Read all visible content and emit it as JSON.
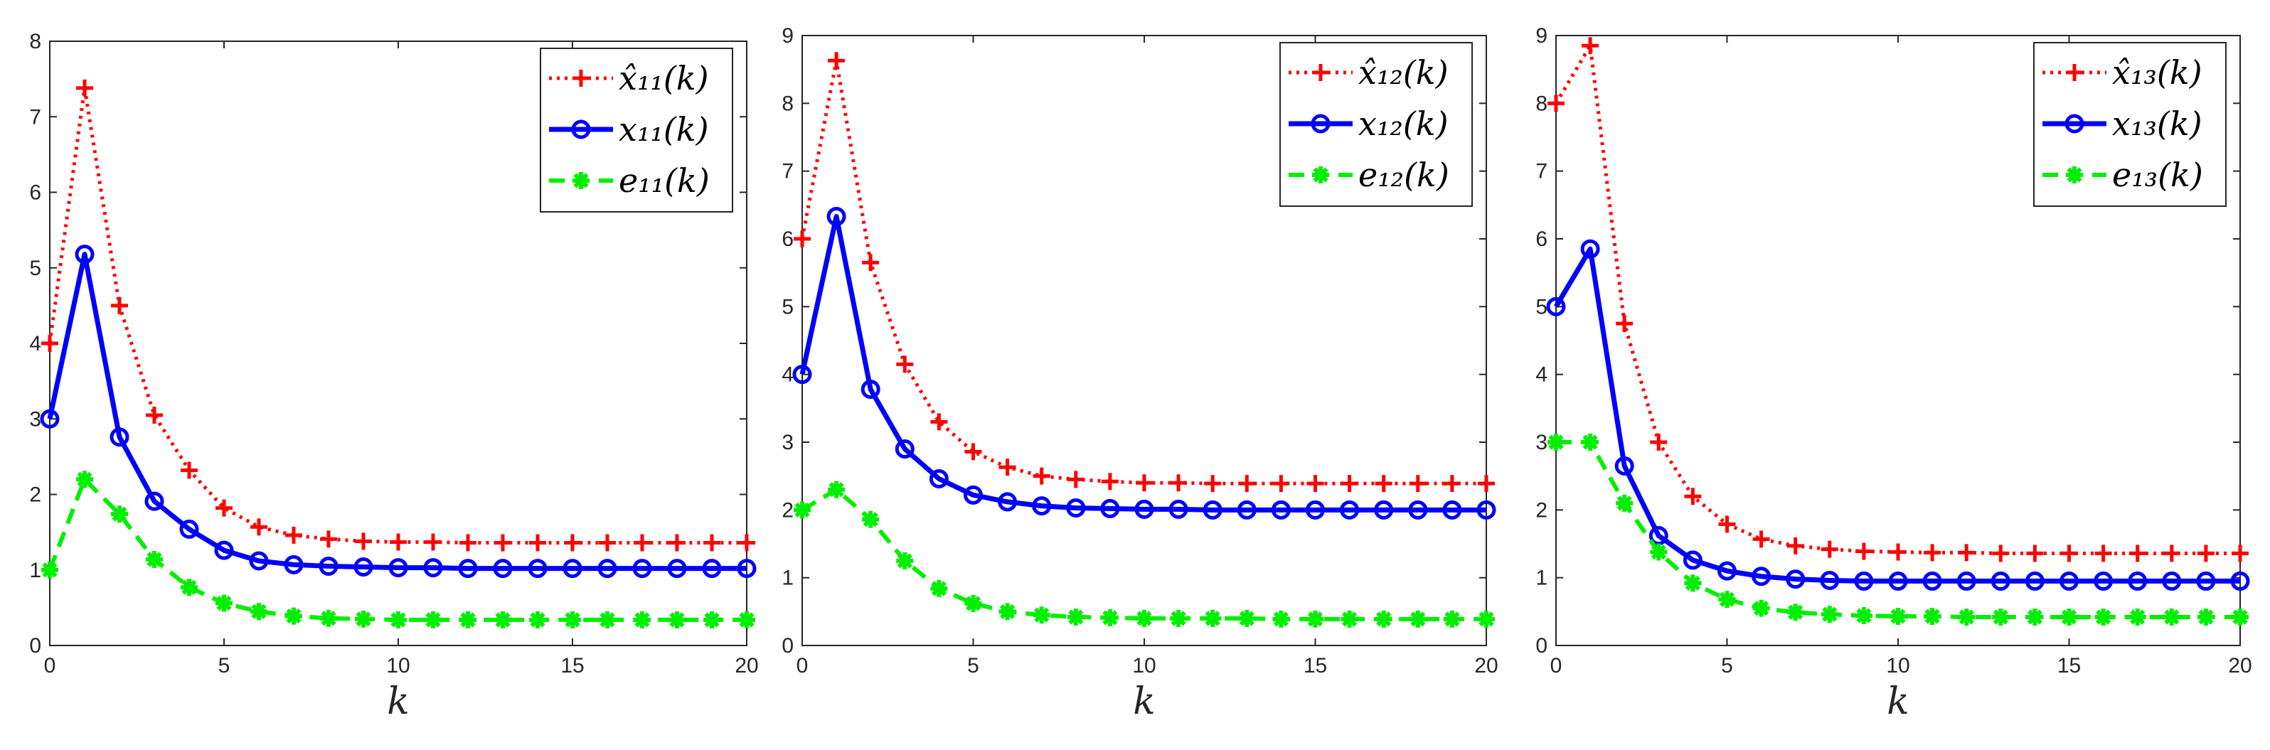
{
  "chart_data": [
    {
      "type": "line",
      "xlabel": "k",
      "xlim": [
        0,
        20
      ],
      "ylim": [
        0,
        8
      ],
      "xticks": [
        "0",
        "5",
        "10",
        "15",
        "20"
      ],
      "yticks": [
        "0",
        "1",
        "2",
        "3",
        "4",
        "5",
        "6",
        "7",
        "8"
      ],
      "grid": false,
      "legend_position": "top-right",
      "x": [
        0,
        1,
        2,
        3,
        4,
        5,
        6,
        7,
        8,
        9,
        10,
        11,
        12,
        13,
        14,
        15,
        16,
        17,
        18,
        19,
        20
      ],
      "series": [
        {
          "name": "x̂₁₁(k)",
          "color": "#ff0000",
          "style": "dotted",
          "marker": "plus",
          "values": [
            4.0,
            7.38,
            4.5,
            3.05,
            2.32,
            1.82,
            1.57,
            1.46,
            1.41,
            1.38,
            1.37,
            1.37,
            1.36,
            1.36,
            1.36,
            1.36,
            1.36,
            1.36,
            1.36,
            1.36,
            1.36
          ]
        },
        {
          "name": "x₁₁(k)",
          "color": "#0000ff",
          "style": "solid",
          "marker": "circle",
          "values": [
            3.0,
            5.18,
            2.76,
            1.91,
            1.54,
            1.26,
            1.12,
            1.07,
            1.05,
            1.04,
            1.03,
            1.03,
            1.02,
            1.02,
            1.02,
            1.02,
            1.02,
            1.02,
            1.02,
            1.02,
            1.02
          ]
        },
        {
          "name": "e₁₁(k)",
          "color": "#00ee00",
          "style": "dashed",
          "marker": "star",
          "values": [
            1.0,
            2.2,
            1.74,
            1.14,
            0.77,
            0.56,
            0.45,
            0.39,
            0.36,
            0.35,
            0.34,
            0.34,
            0.34,
            0.34,
            0.34,
            0.34,
            0.34,
            0.34,
            0.34,
            0.34,
            0.34
          ]
        }
      ]
    },
    {
      "type": "line",
      "xlabel": "k",
      "xlim": [
        0,
        20
      ],
      "ylim": [
        0,
        9
      ],
      "xticks": [
        "0",
        "5",
        "10",
        "15",
        "20"
      ],
      "yticks": [
        "0",
        "1",
        "2",
        "3",
        "4",
        "5",
        "6",
        "7",
        "8",
        "9"
      ],
      "grid": false,
      "legend_position": "top-right",
      "x": [
        0,
        1,
        2,
        3,
        4,
        5,
        6,
        7,
        8,
        9,
        10,
        11,
        12,
        13,
        14,
        15,
        16,
        17,
        18,
        19,
        20
      ],
      "series": [
        {
          "name": "x̂₁₂(k)",
          "color": "#ff0000",
          "style": "dotted",
          "marker": "plus",
          "values": [
            6.0,
            8.63,
            5.65,
            4.15,
            3.3,
            2.86,
            2.63,
            2.5,
            2.45,
            2.42,
            2.4,
            2.4,
            2.39,
            2.39,
            2.39,
            2.39,
            2.39,
            2.39,
            2.39,
            2.39,
            2.39
          ]
        },
        {
          "name": "x₁₂(k)",
          "color": "#0000ff",
          "style": "solid",
          "marker": "circle",
          "values": [
            4.0,
            6.33,
            3.78,
            2.9,
            2.46,
            2.22,
            2.12,
            2.06,
            2.03,
            2.02,
            2.01,
            2.01,
            2.0,
            2.0,
            2.0,
            2.0,
            2.0,
            2.0,
            2.0,
            2.0,
            2.0
          ]
        },
        {
          "name": "e₁₂(k)",
          "color": "#00ee00",
          "style": "dashed",
          "marker": "star",
          "values": [
            2.0,
            2.3,
            1.86,
            1.25,
            0.84,
            0.62,
            0.5,
            0.45,
            0.42,
            0.41,
            0.4,
            0.4,
            0.4,
            0.4,
            0.39,
            0.39,
            0.39,
            0.39,
            0.39,
            0.39,
            0.39
          ]
        }
      ]
    },
    {
      "type": "line",
      "xlabel": "k",
      "xlim": [
        0,
        20
      ],
      "ylim": [
        0,
        9
      ],
      "xticks": [
        "0",
        "5",
        "10",
        "15",
        "20"
      ],
      "yticks": [
        "0",
        "1",
        "2",
        "3",
        "4",
        "5",
        "6",
        "7",
        "8",
        "9"
      ],
      "grid": false,
      "legend_position": "top-right",
      "x": [
        0,
        1,
        2,
        3,
        4,
        5,
        6,
        7,
        8,
        9,
        10,
        11,
        12,
        13,
        14,
        15,
        16,
        17,
        18,
        19,
        20
      ],
      "series": [
        {
          "name": "x̂₁₃(k)",
          "color": "#ff0000",
          "style": "dotted",
          "marker": "plus",
          "values": [
            8.0,
            8.85,
            4.75,
            3.0,
            2.2,
            1.79,
            1.57,
            1.47,
            1.42,
            1.39,
            1.38,
            1.37,
            1.37,
            1.36,
            1.36,
            1.36,
            1.36,
            1.36,
            1.36,
            1.36,
            1.36
          ]
        },
        {
          "name": "x₁₃(k)",
          "color": "#0000ff",
          "style": "solid",
          "marker": "circle",
          "values": [
            5.0,
            5.85,
            2.65,
            1.62,
            1.26,
            1.1,
            1.02,
            0.98,
            0.96,
            0.95,
            0.95,
            0.95,
            0.95,
            0.95,
            0.95,
            0.95,
            0.95,
            0.95,
            0.95,
            0.95,
            0.95
          ]
        },
        {
          "name": "e₁₃(k)",
          "color": "#00ee00",
          "style": "dashed",
          "marker": "star",
          "values": [
            3.0,
            3.0,
            2.1,
            1.38,
            0.92,
            0.68,
            0.55,
            0.49,
            0.46,
            0.44,
            0.43,
            0.43,
            0.42,
            0.42,
            0.42,
            0.42,
            0.42,
            0.42,
            0.42,
            0.42,
            0.42
          ]
        }
      ]
    }
  ]
}
